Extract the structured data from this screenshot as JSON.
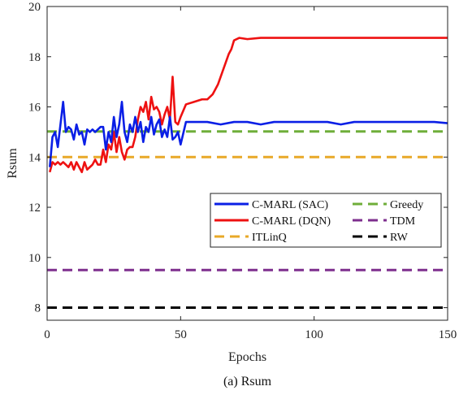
{
  "chart_data": {
    "type": "line",
    "caption": "(a) Rsum",
    "xlabel": "Epochs",
    "ylabel": "Rsum",
    "xlim": [
      0,
      150
    ],
    "ylim": [
      7.5,
      20
    ],
    "xticks": [
      0,
      50,
      100,
      150
    ],
    "yticks": [
      8,
      10,
      12,
      14,
      16,
      18,
      20
    ],
    "grid": false,
    "legend_position": "center-right",
    "legend_columns": 2,
    "series": [
      {
        "name": "C-MARL (SAC)",
        "color": "#0a1fe6",
        "style": "solid",
        "x": [
          1,
          2,
          3,
          4,
          5,
          6,
          7,
          8,
          9,
          10,
          11,
          12,
          13,
          14,
          15,
          16,
          17,
          18,
          19,
          20,
          21,
          22,
          23,
          24,
          25,
          26,
          27,
          28,
          29,
          30,
          31,
          32,
          33,
          34,
          35,
          36,
          37,
          38,
          39,
          40,
          41,
          42,
          43,
          44,
          45,
          46,
          47,
          48,
          49,
          50,
          52,
          56,
          60,
          65,
          70,
          75,
          80,
          85,
          90,
          95,
          100,
          105,
          110,
          115,
          120,
          125,
          130,
          135,
          140,
          145,
          150
        ],
        "y": [
          13.6,
          14.8,
          15.0,
          14.4,
          15.3,
          16.2,
          15.0,
          15.2,
          15.1,
          14.7,
          15.3,
          14.9,
          15.0,
          14.5,
          15.1,
          15.0,
          15.1,
          15.0,
          15.1,
          15.2,
          15.2,
          14.3,
          15.0,
          14.6,
          15.6,
          14.8,
          15.3,
          16.2,
          15.0,
          14.6,
          15.3,
          15.0,
          15.6,
          15.0,
          15.4,
          14.6,
          15.2,
          15.0,
          15.6,
          14.9,
          15.3,
          15.5,
          14.8,
          15.1,
          14.8,
          15.6,
          14.7,
          14.8,
          15.0,
          14.5,
          15.4,
          15.4,
          15.4,
          15.3,
          15.4,
          15.4,
          15.3,
          15.4,
          15.4,
          15.4,
          15.4,
          15.4,
          15.3,
          15.4,
          15.4,
          15.4,
          15.4,
          15.4,
          15.4,
          15.4,
          15.35
        ]
      },
      {
        "name": "C-MARL (DQN)",
        "color": "#ee1111",
        "style": "solid",
        "x": [
          1,
          2,
          3,
          4,
          5,
          6,
          7,
          8,
          9,
          10,
          11,
          12,
          13,
          14,
          15,
          16,
          17,
          18,
          19,
          20,
          21,
          22,
          23,
          24,
          25,
          26,
          27,
          28,
          29,
          30,
          31,
          32,
          33,
          34,
          35,
          36,
          37,
          38,
          39,
          40,
          41,
          42,
          43,
          44,
          45,
          46,
          47,
          48,
          49,
          50,
          52,
          55,
          58,
          60,
          62,
          64,
          66,
          68,
          69,
          70,
          72,
          75,
          80,
          90,
          100,
          110,
          120,
          130,
          140,
          150
        ],
        "y": [
          13.4,
          13.8,
          13.7,
          13.8,
          13.7,
          13.8,
          13.7,
          13.6,
          13.8,
          13.5,
          13.8,
          13.6,
          13.4,
          13.8,
          13.5,
          13.6,
          13.7,
          13.9,
          13.7,
          13.7,
          14.3,
          13.8,
          14.5,
          14.3,
          15.0,
          14.2,
          14.8,
          14.2,
          13.9,
          14.3,
          14.4,
          14.4,
          14.8,
          15.5,
          16.0,
          15.8,
          16.2,
          15.5,
          16.4,
          15.9,
          16.0,
          15.8,
          15.3,
          15.7,
          16.0,
          15.5,
          17.2,
          15.4,
          15.3,
          15.6,
          16.1,
          16.2,
          16.3,
          16.3,
          16.5,
          16.9,
          17.5,
          18.1,
          18.3,
          18.65,
          18.75,
          18.7,
          18.75,
          18.75,
          18.75,
          18.75,
          18.75,
          18.75,
          18.75,
          18.75
        ]
      },
      {
        "name": "ITLinQ",
        "color": "#e8a928",
        "style": "dashed",
        "x": [
          0,
          150
        ],
        "y": [
          14.0,
          14.0
        ]
      },
      {
        "name": "Greedy",
        "color": "#6fae3a",
        "style": "dashed",
        "x": [
          0,
          150
        ],
        "y": [
          15.02,
          15.02
        ]
      },
      {
        "name": "TDM",
        "color": "#7e2f8e",
        "style": "dashed",
        "x": [
          0,
          150
        ],
        "y": [
          9.5,
          9.5
        ]
      },
      {
        "name": "RW",
        "color": "#000000",
        "style": "dashed",
        "x": [
          0,
          150
        ],
        "y": [
          8.0,
          8.0
        ]
      }
    ],
    "legend_order": [
      "C-MARL (SAC)",
      "C-MARL (DQN)",
      "ITLinQ",
      "Greedy",
      "TDM",
      "RW"
    ]
  }
}
